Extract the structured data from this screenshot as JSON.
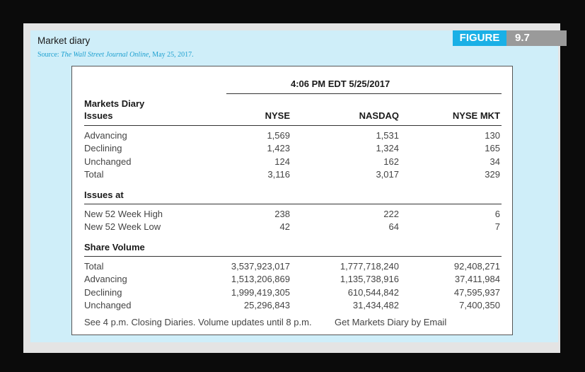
{
  "figure": {
    "label": "FIGURE",
    "number": "9.7"
  },
  "title": "Market diary",
  "source": {
    "prefix": "Source:",
    "publication": "The Wall Street Journal Online,",
    "date": "May 25, 2017."
  },
  "timestamp": "4:06 PM EDT 5/25/2017",
  "section_issues": {
    "title_line1": "Markets Diary",
    "title_line2": "Issues"
  },
  "columns": [
    "NYSE",
    "NASDAQ",
    "NYSE MKT"
  ],
  "issues_rows": [
    {
      "label": "Advancing",
      "values": [
        "1,569",
        "1,531",
        "130"
      ]
    },
    {
      "label": "Declining",
      "values": [
        "1,423",
        "1,324",
        "165"
      ]
    },
    {
      "label": "Unchanged",
      "values": [
        "124",
        "162",
        "34"
      ]
    },
    {
      "label": "Total",
      "values": [
        "3,116",
        "3,017",
        "329"
      ]
    }
  ],
  "section_issues_at": "Issues at",
  "issues_at_rows": [
    {
      "label": "New 52 Week High",
      "values": [
        "238",
        "222",
        "6"
      ]
    },
    {
      "label": "New 52 Week Low",
      "values": [
        "42",
        "64",
        "7"
      ]
    }
  ],
  "section_share_volume": "Share Volume",
  "volume_rows": [
    {
      "label": "Total",
      "values": [
        "3,537,923,017",
        "1,777,718,240",
        "92,408,271"
      ]
    },
    {
      "label": "Advancing",
      "values": [
        "1,513,206,869",
        "1,135,738,916",
        "37,411,984"
      ]
    },
    {
      "label": "Declining",
      "values": [
        "1,999,419,305",
        "610,544,842",
        "47,595,937"
      ]
    },
    {
      "label": "Unchanged",
      "values": [
        "25,296,843",
        "31,434,482",
        "7,400,350"
      ]
    }
  ],
  "footer": {
    "closing_link": "See 4 p.m. Closing Diaries. Volume updates until 8 p.m.",
    "email_link": "Get Markets Diary by Email"
  }
}
